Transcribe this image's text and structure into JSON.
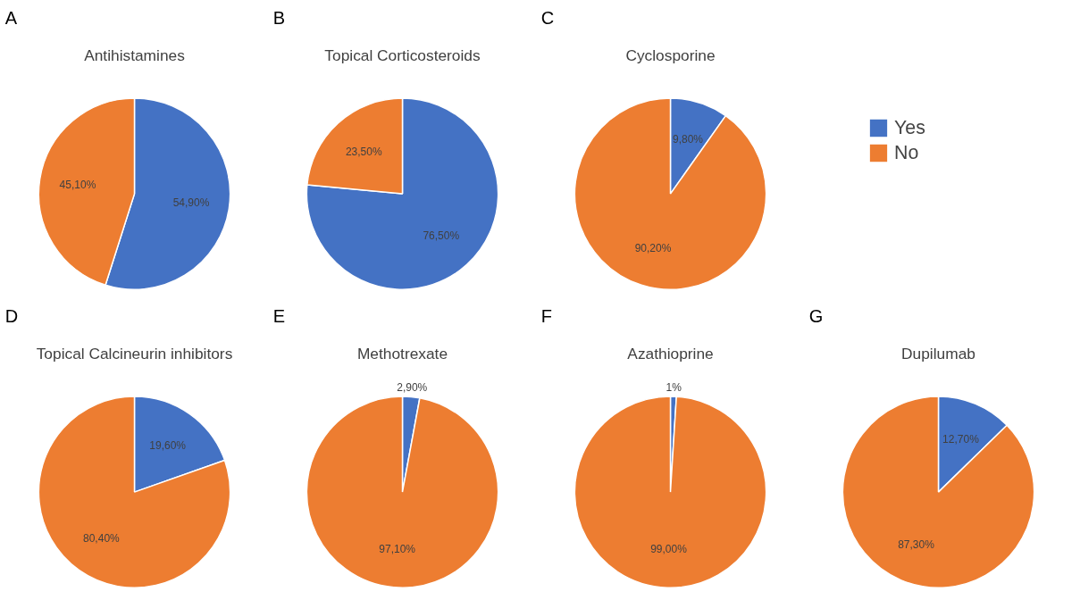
{
  "chart_data": [
    {
      "type": "pie",
      "title": "Antihistamines",
      "annotations": [
        "A"
      ],
      "categories": [
        null,
        null
      ],
      "values": [
        54.9,
        45.1
      ],
      "colors": [
        "#4472c4",
        "#ed7d31"
      ],
      "value_labels": [
        "54,90%",
        "45,10%"
      ]
    },
    {
      "type": "pie",
      "title": "Topical Corticosteroids",
      "annotations": [
        "B"
      ],
      "categories": [
        null,
        null
      ],
      "values": [
        76.5,
        23.5
      ],
      "colors": [
        "#4472c4",
        "#ed7d31"
      ],
      "value_labels": [
        "76,50%",
        "23,50%"
      ]
    },
    {
      "type": "pie",
      "title": "Cyclosporine",
      "annotations": [
        "C"
      ],
      "categories": [
        "Yes",
        "No"
      ],
      "values": [
        9.8,
        90.2
      ],
      "colors": [
        "#4472c4",
        "#ed7d31"
      ],
      "value_labels": [
        "9,80%",
        "90,20%"
      ],
      "legend": "right"
    },
    {
      "type": "pie",
      "title": "Topical Calcineurin inhibitors",
      "annotations": [
        "D"
      ],
      "categories": [
        null,
        null
      ],
      "values": [
        19.6,
        80.4
      ],
      "colors": [
        "#4472c4",
        "#ed7d31"
      ],
      "value_labels": [
        "19,60%",
        "80,40%"
      ]
    },
    {
      "type": "pie",
      "title": "Methotrexate",
      "annotations": [
        "E"
      ],
      "categories": [
        null,
        null
      ],
      "values": [
        2.9,
        97.1
      ],
      "colors": [
        "#4472c4",
        "#ed7d31"
      ],
      "value_labels": [
        "2,90%",
        "97,10%"
      ]
    },
    {
      "type": "pie",
      "title": "Azathioprine",
      "annotations": [
        "F"
      ],
      "categories": [
        null,
        null
      ],
      "values": [
        1,
        99
      ],
      "colors": [
        "#4472c4",
        "#ed7d31"
      ],
      "value_labels": [
        "1%",
        "99,00%"
      ]
    },
    {
      "type": "pie",
      "title": "Dupilumab",
      "annotations": [
        "G"
      ],
      "categories": [
        null,
        null
      ],
      "values": [
        12.7,
        87.3
      ],
      "colors": [
        "#4472c4",
        "#ed7d31"
      ],
      "value_labels": [
        "12,70%",
        "87,30%"
      ]
    }
  ]
}
